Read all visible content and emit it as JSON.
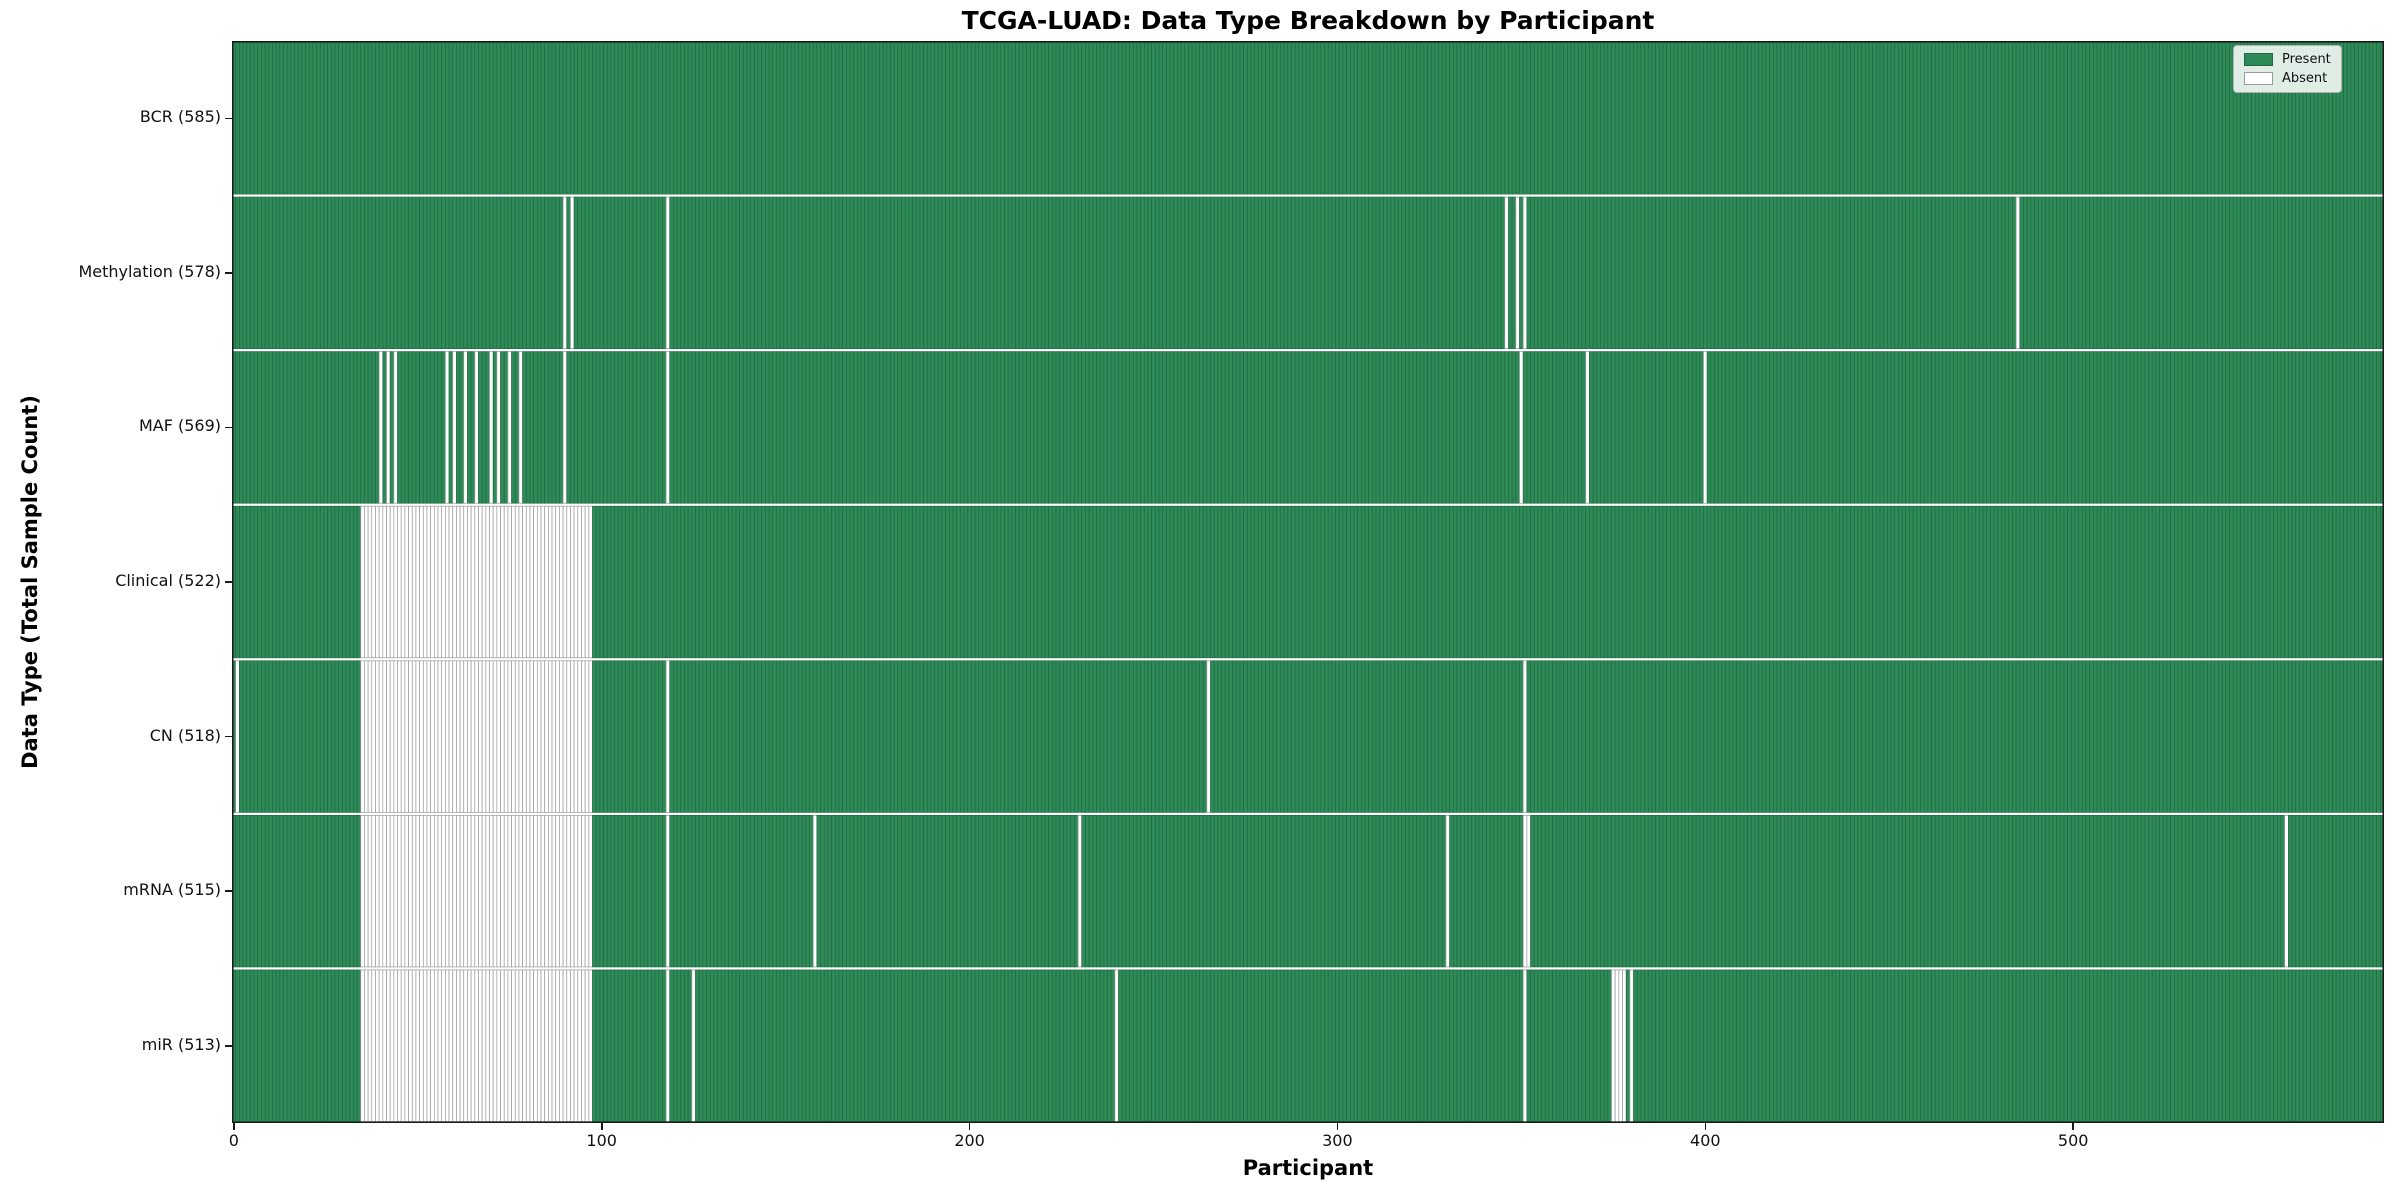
{
  "colors": {
    "present": "#2e8b57",
    "present_edge": "#1f6b41",
    "absent": "#ffffff",
    "absent_edge": "#9a9a9a",
    "plot_border": "#1a1a1a"
  },
  "chart_data": {
    "type": "heatmap",
    "title": "TCGA-LUAD: Data Type Breakdown by Participant",
    "xlabel": "Participant",
    "ylabel": "Data Type (Total Sample Count)",
    "legend": [
      "Present",
      "Absent"
    ],
    "legend_position": "upper right",
    "n_participants": 585,
    "x_range": [
      0,
      585
    ],
    "x_ticks": [
      0,
      100,
      200,
      300,
      400,
      500
    ],
    "cell_values": {
      "present": 1,
      "absent": 0
    },
    "rows": [
      {
        "name": "BCR",
        "label": "BCR (585)",
        "total": 585,
        "absent_ranges": []
      },
      {
        "name": "Methylation",
        "label": "Methylation (578)",
        "total": 578,
        "absent_ranges": [
          [
            90,
            90
          ],
          [
            92,
            92
          ],
          [
            118,
            118
          ],
          [
            346,
            346
          ],
          [
            349,
            349
          ],
          [
            351,
            351
          ],
          [
            485,
            485
          ]
        ]
      },
      {
        "name": "MAF",
        "label": "MAF (569)",
        "total": 569,
        "absent_ranges": [
          [
            40,
            40
          ],
          [
            42,
            42
          ],
          [
            44,
            44
          ],
          [
            58,
            58
          ],
          [
            60,
            60
          ],
          [
            63,
            63
          ],
          [
            66,
            66
          ],
          [
            70,
            70
          ],
          [
            72,
            72
          ],
          [
            75,
            75
          ],
          [
            78,
            78
          ],
          [
            90,
            90
          ],
          [
            118,
            118
          ],
          [
            350,
            350
          ],
          [
            368,
            368
          ],
          [
            400,
            400
          ]
        ]
      },
      {
        "name": "Clinical",
        "label": "Clinical (522)",
        "total": 522,
        "absent_ranges": [
          [
            35,
            97
          ]
        ]
      },
      {
        "name": "CN",
        "label": "CN (518)",
        "total": 518,
        "absent_ranges": [
          [
            1,
            1
          ],
          [
            35,
            97
          ],
          [
            118,
            118
          ],
          [
            265,
            265
          ],
          [
            351,
            351
          ]
        ]
      },
      {
        "name": "mRNA",
        "label": "mRNA (515)",
        "total": 515,
        "absent_ranges": [
          [
            35,
            97
          ],
          [
            118,
            118
          ],
          [
            158,
            158
          ],
          [
            230,
            230
          ],
          [
            330,
            330
          ],
          [
            351,
            352
          ],
          [
            558,
            558
          ]
        ]
      },
      {
        "name": "miR",
        "label": "miR (513)",
        "total": 513,
        "absent_ranges": [
          [
            35,
            97
          ],
          [
            118,
            118
          ],
          [
            125,
            125
          ],
          [
            240,
            240
          ],
          [
            351,
            351
          ],
          [
            375,
            378
          ],
          [
            380,
            380
          ]
        ]
      }
    ]
  }
}
